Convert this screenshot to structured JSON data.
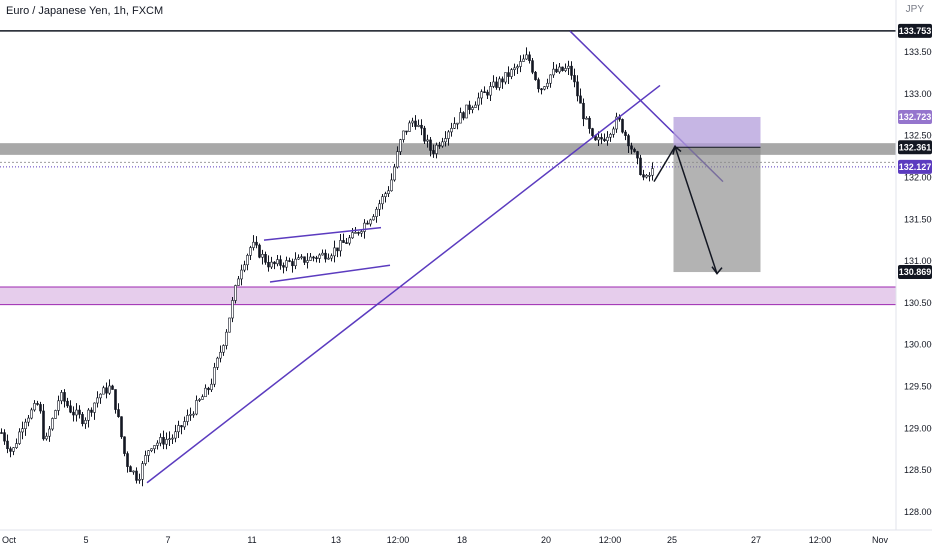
{
  "symbol": {
    "title": "Euro / Japanese Yen, 1h, FXCM",
    "currency": "JPY"
  },
  "chart_data": {
    "type": "candlestick",
    "price_axis": {
      "range": [
        127.85,
        134.2
      ],
      "ticks": [
        "133.500",
        "133.000",
        "132.500",
        "132.000",
        "131.500",
        "131.000",
        "130.500",
        "130.000",
        "129.500",
        "129.000",
        "128.500",
        "128.000"
      ]
    },
    "time_axis": {
      "labels": [
        "Oct",
        "5",
        "7",
        "11",
        "13",
        "12:00",
        "18",
        "20",
        "12:00",
        "25",
        "27",
        "12:00",
        "Nov"
      ]
    },
    "price_labels": [
      {
        "name": "resistance-line",
        "value": 133.753,
        "text": "133.753",
        "bg": "#131722",
        "fg": "#ffffff"
      },
      {
        "name": "target-box-top",
        "value": 132.723,
        "text": "132.723",
        "bg": "#9575cd",
        "fg": "#ffffff"
      },
      {
        "name": "entry-zone",
        "value": 132.361,
        "text": "132.361",
        "bg": "#131722",
        "fg": "#ffffff"
      },
      {
        "name": "last-price",
        "value": 132.127,
        "text": "132.127",
        "bg": "#5b3bbf",
        "fg": "#ffffff"
      },
      {
        "name": "target-price",
        "value": 130.869,
        "text": "130.869",
        "bg": "#131722",
        "fg": "#ffffff"
      }
    ],
    "zones": [
      {
        "name": "grey-zone",
        "from": 132.27,
        "to": 132.41,
        "color": "#9e9e9e"
      },
      {
        "name": "purple-zone",
        "from": 130.48,
        "to": 130.69,
        "color": "#e6cdec"
      }
    ],
    "key_points": [
      {
        "t": 0.5,
        "close": 128.95
      },
      {
        "t": 4,
        "close": 128.7
      },
      {
        "t": 8,
        "close": 129.1
      },
      {
        "t": 13,
        "close": 129.3
      },
      {
        "t": 15,
        "close": 128.8
      },
      {
        "t": 20,
        "close": 129.4
      },
      {
        "t": 24,
        "close": 129.2
      },
      {
        "t": 28,
        "close": 129.1
      },
      {
        "t": 33,
        "close": 129.4
      },
      {
        "t": 37,
        "close": 129.5
      },
      {
        "t": 39,
        "close": 129.2
      },
      {
        "t": 42,
        "close": 128.6
      },
      {
        "t": 46,
        "close": 128.4
      },
      {
        "t": 50,
        "close": 128.8
      },
      {
        "t": 58,
        "close": 128.9
      },
      {
        "t": 64,
        "close": 129.2
      },
      {
        "t": 70,
        "close": 129.5
      },
      {
        "t": 75,
        "close": 130.1
      },
      {
        "t": 80,
        "close": 130.9
      },
      {
        "t": 84,
        "close": 131.2
      },
      {
        "t": 90,
        "close": 130.95
      },
      {
        "t": 100,
        "close": 131.0
      },
      {
        "t": 110,
        "close": 131.1
      },
      {
        "t": 118,
        "close": 131.3
      },
      {
        "t": 125,
        "close": 131.6
      },
      {
        "t": 130,
        "close": 131.9
      },
      {
        "t": 134,
        "close": 132.5
      },
      {
        "t": 138,
        "close": 132.7
      },
      {
        "t": 144,
        "close": 132.3
      },
      {
        "t": 150,
        "close": 132.6
      },
      {
        "t": 158,
        "close": 132.9
      },
      {
        "t": 165,
        "close": 133.1
      },
      {
        "t": 172,
        "close": 133.3
      },
      {
        "t": 176,
        "close": 133.45
      },
      {
        "t": 180,
        "close": 133.05
      },
      {
        "t": 184,
        "close": 133.25
      },
      {
        "t": 190,
        "close": 133.3
      },
      {
        "t": 194,
        "close": 132.8
      },
      {
        "t": 198,
        "close": 132.4
      },
      {
        "t": 202,
        "close": 132.5
      },
      {
        "t": 206,
        "close": 132.7
      },
      {
        "t": 210,
        "close": 132.4
      },
      {
        "t": 215,
        "close": 131.95
      },
      {
        "t": 218,
        "close": 132.1
      }
    ]
  }
}
